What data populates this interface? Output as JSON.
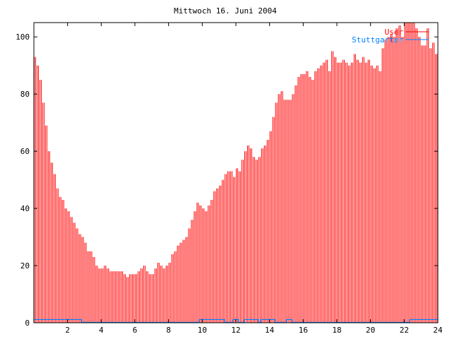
{
  "chart_data": {
    "type": "bar",
    "title": "Mittwoch 16. Juni 2004",
    "xlabel": "",
    "ylabel": "",
    "xlim": [
      0,
      24
    ],
    "ylim": [
      0,
      105
    ],
    "x_step_hours": 0.1667,
    "xticks": [
      "2",
      "4",
      "6",
      "8",
      "10",
      "12",
      "14",
      "16",
      "18",
      "20",
      "22",
      "24"
    ],
    "yticks": [
      "0",
      "20",
      "40",
      "60",
      "80",
      "100"
    ],
    "legend_position": "top-right",
    "series": [
      {
        "name": "User",
        "color": "#ff0000",
        "style": "impulses",
        "values": [
          93,
          90,
          85,
          77,
          69,
          60,
          56,
          52,
          47,
          44,
          43,
          40,
          39,
          37,
          35,
          33,
          31,
          30,
          28,
          25,
          25,
          23,
          20,
          19,
          19,
          20,
          19,
          18,
          18,
          18,
          18,
          18,
          17,
          16,
          17,
          17,
          17,
          18,
          19,
          20,
          18,
          17,
          17,
          19,
          21,
          20,
          19,
          20,
          21,
          24,
          25,
          27,
          28,
          29,
          30,
          33,
          36,
          39,
          42,
          41,
          40,
          39,
          41,
          43,
          46,
          47,
          48,
          50,
          52,
          53,
          53,
          51,
          54,
          53,
          57,
          60,
          62,
          61,
          58,
          57,
          58,
          61,
          62,
          64,
          67,
          72,
          77,
          80,
          81,
          78,
          78,
          78,
          80,
          83,
          86,
          87,
          87,
          88,
          86,
          85,
          88,
          89,
          90,
          91,
          92,
          88,
          95,
          93,
          91,
          91,
          92,
          91,
          90,
          91,
          94,
          92,
          91,
          93,
          91,
          92,
          90,
          89,
          90,
          88,
          96,
          99,
          100,
          101,
          100,
          103,
          104,
          100,
          105,
          105,
          105,
          105,
          103,
          100,
          97,
          97,
          103,
          96,
          98,
          94
        ]
      },
      {
        "name": "Stuttgarter",
        "color": "#0080ff",
        "style": "steps",
        "values": [
          1,
          1,
          1,
          1,
          1,
          1,
          1,
          1,
          1,
          1,
          1,
          1,
          1,
          1,
          1,
          1,
          1,
          0,
          0,
          0,
          0,
          0,
          0,
          0,
          0,
          0,
          0,
          0,
          0,
          0,
          0,
          0,
          0,
          0,
          0,
          0,
          0,
          0,
          0,
          0,
          0,
          0,
          0,
          0,
          0,
          0,
          0,
          0,
          0,
          0,
          0,
          0,
          0,
          0,
          0,
          0,
          0,
          0,
          0,
          1,
          1,
          1,
          1,
          1,
          1,
          1,
          1,
          1,
          0,
          0,
          0,
          1,
          1,
          0,
          0,
          1,
          1,
          1,
          1,
          1,
          0,
          1,
          1,
          1,
          1,
          1,
          0,
          0,
          0,
          0,
          1,
          1,
          0,
          0,
          0,
          0,
          0,
          0,
          0,
          0,
          0,
          0,
          0,
          0,
          0,
          0,
          0,
          0,
          0,
          0,
          0,
          0,
          0,
          0,
          0,
          0,
          0,
          0,
          0,
          0,
          0,
          0,
          0,
          0,
          0,
          0,
          0,
          0,
          0,
          0,
          0,
          0,
          0,
          0,
          1,
          1,
          1,
          1,
          1,
          1,
          1,
          1,
          1,
          1
        ]
      }
    ]
  }
}
